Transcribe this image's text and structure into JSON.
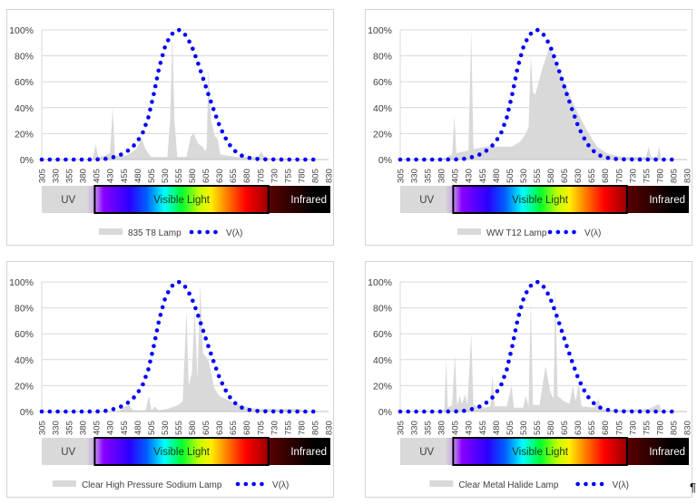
{
  "bands": {
    "uv": "UV",
    "visible": "Visible Light",
    "infrared": "Infrared"
  },
  "colors": {
    "lamp_fill": "#d9d9d9",
    "v_lambda": "#0000ff",
    "grid": "#d9d9d9"
  },
  "chart_data": [
    {
      "type": "area",
      "x_ticks": [
        305,
        330,
        355,
        380,
        405,
        430,
        455,
        480,
        505,
        530,
        555,
        580,
        605,
        630,
        655,
        680,
        705,
        730,
        755,
        780,
        805,
        830
      ],
      "y_ticks": [
        "0%",
        "20%",
        "40%",
        "60%",
        "80%",
        "100%"
      ],
      "ylim": [
        0,
        100
      ],
      "grid": "horizontal",
      "legend": "bottom",
      "series": [
        {
          "name": "835 T8 Lamp",
          "style": "area",
          "points": [
            [
              305,
              0
            ],
            [
              398,
              0
            ],
            [
              404,
              12
            ],
            [
              408,
              2
            ],
            [
              420,
              3
            ],
            [
              430,
              5
            ],
            [
              435,
              40
            ],
            [
              439,
              3
            ],
            [
              460,
              3
            ],
            [
              478,
              8
            ],
            [
              488,
              16
            ],
            [
              495,
              8
            ],
            [
              505,
              2
            ],
            [
              535,
              2
            ],
            [
              540,
              30
            ],
            [
              544,
              95
            ],
            [
              548,
              30
            ],
            [
              553,
              2
            ],
            [
              570,
              2
            ],
            [
              578,
              18
            ],
            [
              583,
              20
            ],
            [
              592,
              12
            ],
            [
              600,
              10
            ],
            [
              604,
              6
            ],
            [
              607,
              10
            ],
            [
              610,
              70
            ],
            [
              615,
              30
            ],
            [
              622,
              18
            ],
            [
              627,
              16
            ],
            [
              632,
              4
            ],
            [
              660,
              2
            ],
            [
              700,
              2
            ],
            [
              707,
              6
            ],
            [
              714,
              1
            ],
            [
              830,
              0
            ]
          ]
        },
        {
          "name": "V(λ)",
          "style": "dotted",
          "ref": "v_lambda"
        }
      ]
    },
    {
      "type": "area",
      "x_ticks": [
        305,
        330,
        355,
        380,
        405,
        430,
        455,
        480,
        505,
        530,
        555,
        580,
        605,
        630,
        655,
        680,
        705,
        730,
        755,
        780,
        805,
        830
      ],
      "y_ticks": [
        "0%",
        "20%",
        "40%",
        "60%",
        "80%",
        "100%"
      ],
      "ylim": [
        0,
        100
      ],
      "grid": "horizontal",
      "legend": "bottom",
      "series": [
        {
          "name": "WW T12 Lamp",
          "style": "area",
          "points": [
            [
              305,
              0
            ],
            [
              375,
              0
            ],
            [
              390,
              2
            ],
            [
              400,
              4
            ],
            [
              404,
              33
            ],
            [
              408,
              5
            ],
            [
              430,
              7
            ],
            [
              435,
              100
            ],
            [
              439,
              8
            ],
            [
              460,
              10
            ],
            [
              510,
              10
            ],
            [
              525,
              14
            ],
            [
              535,
              20
            ],
            [
              540,
              25
            ],
            [
              544,
              80
            ],
            [
              548,
              52
            ],
            [
              552,
              50
            ],
            [
              565,
              70
            ],
            [
              578,
              87
            ],
            [
              595,
              70
            ],
            [
              610,
              55
            ],
            [
              625,
              40
            ],
            [
              640,
              28
            ],
            [
              650,
              20
            ],
            [
              665,
              10
            ],
            [
              682,
              5
            ],
            [
              700,
              3
            ],
            [
              710,
              2
            ],
            [
              755,
              2
            ],
            [
              760,
              10
            ],
            [
              764,
              2
            ],
            [
              775,
              2
            ],
            [
              779,
              10
            ],
            [
              783,
              0
            ],
            [
              830,
              0
            ]
          ]
        },
        {
          "name": "V(λ)",
          "style": "dotted",
          "ref": "v_lambda"
        }
      ]
    },
    {
      "type": "area",
      "x_ticks": [
        305,
        330,
        355,
        380,
        405,
        430,
        455,
        480,
        505,
        530,
        555,
        580,
        605,
        630,
        655,
        680,
        705,
        730,
        755,
        780,
        805,
        830
      ],
      "y_ticks": [
        "0%",
        "20%",
        "40%",
        "60%",
        "80%",
        "100%"
      ],
      "ylim": [
        0,
        100
      ],
      "grid": "horizontal",
      "legend": "bottom",
      "series": [
        {
          "name": "Clear High Pressure Sodium Lamp",
          "style": "area",
          "points": [
            [
              305,
              0
            ],
            [
              445,
              0
            ],
            [
              458,
              4
            ],
            [
              464,
              5
            ],
            [
              472,
              1
            ],
            [
              495,
              1
            ],
            [
              501,
              12
            ],
            [
              506,
              1
            ],
            [
              512,
              4
            ],
            [
              518,
              1
            ],
            [
              535,
              2
            ],
            [
              555,
              5
            ],
            [
              563,
              8
            ],
            [
              570,
              78
            ],
            [
              574,
              20
            ],
            [
              580,
              30
            ],
            [
              585,
              80
            ],
            [
              590,
              25
            ],
            [
              595,
              98
            ],
            [
              600,
              45
            ],
            [
              610,
              40
            ],
            [
              621,
              18
            ],
            [
              630,
              12
            ],
            [
              641,
              10
            ],
            [
              655,
              7
            ],
            [
              668,
              5
            ],
            [
              685,
              3
            ],
            [
              700,
              2
            ],
            [
              780,
              2
            ],
            [
              785,
              0
            ],
            [
              830,
              0
            ]
          ]
        },
        {
          "name": "V(λ)",
          "style": "dotted",
          "ref": "v_lambda"
        }
      ]
    },
    {
      "type": "area",
      "x_ticks": [
        305,
        330,
        355,
        380,
        405,
        430,
        455,
        480,
        505,
        530,
        555,
        580,
        605,
        630,
        655,
        680,
        705,
        730,
        755,
        780,
        805,
        830
      ],
      "y_ticks": [
        "0%",
        "20%",
        "40%",
        "60%",
        "80%",
        "100%"
      ],
      "ylim": [
        0,
        100
      ],
      "grid": "horizontal",
      "legend": "bottom",
      "series": [
        {
          "name": "Clear Metal Halide Lamp",
          "style": "area",
          "points": [
            [
              305,
              0
            ],
            [
              383,
              0
            ],
            [
              386,
              3
            ],
            [
              389,
              40
            ],
            [
              392,
              3
            ],
            [
              400,
              5
            ],
            [
              405,
              44
            ],
            [
              409,
              5
            ],
            [
              414,
              12
            ],
            [
              418,
              6
            ],
            [
              424,
              13
            ],
            [
              428,
              5
            ],
            [
              435,
              60
            ],
            [
              439,
              5
            ],
            [
              460,
              3
            ],
            [
              470,
              4
            ],
            [
              474,
              28
            ],
            [
              478,
              4
            ],
            [
              500,
              4
            ],
            [
              509,
              20
            ],
            [
              513,
              3
            ],
            [
              530,
              3
            ],
            [
              535,
              12
            ],
            [
              540,
              4
            ],
            [
              544,
              86
            ],
            [
              548,
              5
            ],
            [
              560,
              5
            ],
            [
              571,
              35
            ],
            [
              580,
              15
            ],
            [
              586,
              10
            ],
            [
              589,
              100
            ],
            [
              593,
              12
            ],
            [
              605,
              8
            ],
            [
              615,
              6
            ],
            [
              621,
              20
            ],
            [
              626,
              8
            ],
            [
              632,
              22
            ],
            [
              637,
              4
            ],
            [
              660,
              3
            ],
            [
              668,
              10
            ],
            [
              672,
              2
            ],
            [
              700,
              1
            ],
            [
              760,
              2
            ],
            [
              779,
              6
            ],
            [
              783,
              0
            ],
            [
              830,
              0
            ]
          ]
        },
        {
          "name": "V(λ)",
          "style": "dotted",
          "ref": "v_lambda"
        }
      ]
    }
  ],
  "v_lambda": [
    [
      305,
      0
    ],
    [
      380,
      0
    ],
    [
      390,
      0.01
    ],
    [
      400,
      0.04
    ],
    [
      410,
      0.12
    ],
    [
      420,
      0.4
    ],
    [
      430,
      1.16
    ],
    [
      440,
      2.3
    ],
    [
      450,
      3.8
    ],
    [
      460,
      6
    ],
    [
      470,
      9.1
    ],
    [
      480,
      13.9
    ],
    [
      490,
      20.8
    ],
    [
      500,
      32.3
    ],
    [
      510,
      50.3
    ],
    [
      520,
      71
    ],
    [
      530,
      86.2
    ],
    [
      540,
      95.4
    ],
    [
      550,
      99.5
    ],
    [
      555,
      100
    ],
    [
      560,
      99.5
    ],
    [
      570,
      95.2
    ],
    [
      580,
      87
    ],
    [
      590,
      75.7
    ],
    [
      600,
      63.1
    ],
    [
      610,
      50.3
    ],
    [
      620,
      38.1
    ],
    [
      630,
      26.5
    ],
    [
      640,
      17.5
    ],
    [
      650,
      10.7
    ],
    [
      660,
      6.1
    ],
    [
      670,
      3.2
    ],
    [
      680,
      1.7
    ],
    [
      690,
      0.82
    ],
    [
      700,
      0.41
    ],
    [
      710,
      0.21
    ],
    [
      720,
      0.1
    ],
    [
      730,
      0.05
    ],
    [
      740,
      0.03
    ],
    [
      750,
      0.01
    ],
    [
      815,
      0
    ]
  ]
}
